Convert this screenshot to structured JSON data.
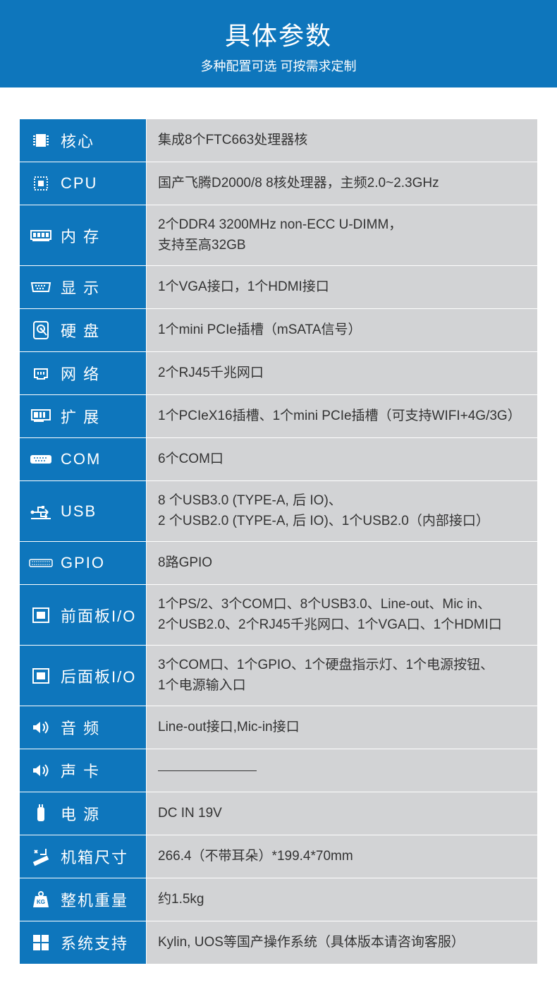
{
  "colors": {
    "header_bg": "#0e76bc",
    "label_bg": "#0e76bc",
    "value_bg": "#d2d3d5",
    "value_text": "#333333"
  },
  "header": {
    "title": "具体参数",
    "subtitle": "多种配置可选 可按需求定制"
  },
  "specs": [
    {
      "icon": "chip",
      "label": "核心",
      "value": "集成8个FTC663处理器核"
    },
    {
      "icon": "cpu",
      "label": "CPU",
      "value": "国产飞腾D2000/8  8核处理器，主频2.0~2.3GHz"
    },
    {
      "icon": "ram",
      "label": "内 存",
      "value": "2个DDR4 3200MHz non-ECC U-DIMM，\n支持至高32GB"
    },
    {
      "icon": "vga",
      "label": "显 示",
      "value": "1个VGA接口，1个HDMI接口"
    },
    {
      "icon": "hdd",
      "label": "硬 盘",
      "value": "1个mini PCIe插槽（mSATA信号）"
    },
    {
      "icon": "network",
      "label": "网 络",
      "value": "2个RJ45千兆网口"
    },
    {
      "icon": "expansion",
      "label": "扩 展",
      "value": "1个PCIeX16插槽、1个mini PCIe插槽（可支持WIFI+4G/3G）"
    },
    {
      "icon": "com",
      "label": "COM",
      "value": "6个COM口"
    },
    {
      "icon": "usb",
      "label": "USB",
      "value": "8 个USB3.0 (TYPE-A, 后 IO)、\n2 个USB2.0 (TYPE-A, 后 IO)、1个USB2.0（内部接口）"
    },
    {
      "icon": "gpio",
      "label": "GPIO",
      "value": "8路GPIO"
    },
    {
      "icon": "panel",
      "label": "前面板I/O",
      "value": "1个PS/2、3个COM口、8个USB3.0、Line-out、Mic in、\n2个USB2.0、2个RJ45千兆网口、1个VGA口、1个HDMI口"
    },
    {
      "icon": "panel",
      "label": "后面板I/O",
      "value": "3个COM口、1个GPIO、1个硬盘指示灯、1个电源按钮、\n1个电源输入口"
    },
    {
      "icon": "audio",
      "label": "音 频",
      "value": "Line-out接口,Mic-in接口"
    },
    {
      "icon": "audio",
      "label": "声 卡",
      "value": "__DASH__"
    },
    {
      "icon": "power",
      "label": "电 源",
      "value": "DC IN 19V"
    },
    {
      "icon": "size",
      "label": "机箱尺寸",
      "value": "266.4（不带耳朵）*199.4*70mm"
    },
    {
      "icon": "weight",
      "label": "整机重量",
      "value": "约1.5kg"
    },
    {
      "icon": "os",
      "label": "系统支持",
      "value": "Kylin, UOS等国产操作系统（具体版本请咨询客服）"
    }
  ]
}
